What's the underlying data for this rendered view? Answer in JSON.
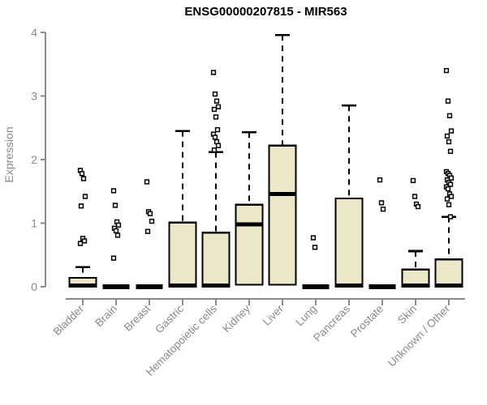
{
  "chart_data": {
    "type": "box",
    "title": "ENSG00000207815 - MIR563",
    "ylabel": "Expression",
    "xlabel": "",
    "ylim": [
      0,
      4
    ],
    "yticks": [
      "0",
      "1",
      "2",
      "3",
      "4"
    ],
    "grid": false,
    "legend": "none",
    "categories": [
      "Bladder",
      "Brain",
      "Breast",
      "Gastric",
      "Hematopoietic cells",
      "Kidney",
      "Liver",
      "Lung",
      "Pancreas",
      "Prostate",
      "Skin",
      "Unknown / Other"
    ],
    "boxes": [
      {
        "label": "Bladder",
        "q1": 0.0,
        "median": 0.02,
        "q3": 0.14,
        "whisker_lo": 0.0,
        "whisker_hi": 0.31,
        "outliers": [
          1.83,
          1.78,
          1.7,
          1.42,
          1.27,
          0.76,
          0.72,
          0.68
        ]
      },
      {
        "label": "Brain",
        "q1": 0.0,
        "median": 0.0,
        "q3": 0.0,
        "whisker_lo": 0.0,
        "whisker_hi": 0.0,
        "outliers": [
          1.51,
          1.28,
          1.02,
          0.97,
          0.92,
          0.88,
          0.81,
          0.45
        ]
      },
      {
        "label": "Breast",
        "q1": 0.0,
        "median": 0.0,
        "q3": 0.0,
        "whisker_lo": 0.0,
        "whisker_hi": 0.0,
        "outliers": [
          1.65,
          1.18,
          1.15,
          1.03,
          0.87
        ]
      },
      {
        "label": "Gastric",
        "q1": 0.0,
        "median": 0.02,
        "q3": 1.01,
        "whisker_lo": 0.0,
        "whisker_hi": 2.45,
        "outliers": []
      },
      {
        "label": "Hematopoietic cells",
        "q1": 0.0,
        "median": 0.02,
        "q3": 0.85,
        "whisker_lo": 0.0,
        "whisker_hi": 2.12,
        "outliers": [
          3.37,
          3.03,
          2.92,
          2.83,
          2.79,
          2.67,
          2.47,
          2.4,
          2.35,
          2.28,
          2.22,
          2.15
        ]
      },
      {
        "label": "Kidney",
        "q1": 0.03,
        "median": 0.98,
        "q3": 1.29,
        "whisker_lo": 0.0,
        "whisker_hi": 2.43,
        "outliers": []
      },
      {
        "label": "Liver",
        "q1": 0.03,
        "median": 1.46,
        "q3": 2.22,
        "whisker_lo": 0.0,
        "whisker_hi": 3.96,
        "outliers": []
      },
      {
        "label": "Lung",
        "q1": 0.0,
        "median": 0.0,
        "q3": 0.0,
        "whisker_lo": 0.0,
        "whisker_hi": 0.0,
        "outliers": [
          0.77,
          0.62
        ]
      },
      {
        "label": "Pancreas",
        "q1": 0.0,
        "median": 0.02,
        "q3": 1.39,
        "whisker_lo": 0.0,
        "whisker_hi": 2.85,
        "outliers": []
      },
      {
        "label": "Prostate",
        "q1": 0.0,
        "median": 0.0,
        "q3": 0.0,
        "whisker_lo": 0.0,
        "whisker_hi": 0.0,
        "outliers": [
          1.68,
          1.32,
          1.22
        ]
      },
      {
        "label": "Skin",
        "q1": 0.0,
        "median": 0.02,
        "q3": 0.27,
        "whisker_lo": 0.0,
        "whisker_hi": 0.56,
        "outliers": [
          1.67,
          1.42,
          1.3,
          1.26
        ]
      },
      {
        "label": "Unknown / Other",
        "q1": 0.0,
        "median": 0.02,
        "q3": 0.43,
        "whisker_lo": 0.0,
        "whisker_hi": 1.1,
        "outliers": [
          3.4,
          2.92,
          2.69,
          2.45,
          2.37,
          2.28,
          2.13,
          1.81,
          1.78,
          1.75,
          1.71,
          1.68,
          1.64,
          1.61,
          1.57,
          1.54,
          1.46,
          1.42,
          1.38,
          1.29,
          1.1
        ]
      }
    ],
    "colors": {
      "box_fill": "#EDE7C9",
      "box_border": "#000000",
      "median": "#000000",
      "whisker": "#000000",
      "outlier_stroke": "#000000",
      "outlier_fill": "#ffffff",
      "axis": "#8a8a8a",
      "tick_label": "#8a8a8a",
      "title": "#000000",
      "background": "#ffffff"
    }
  }
}
